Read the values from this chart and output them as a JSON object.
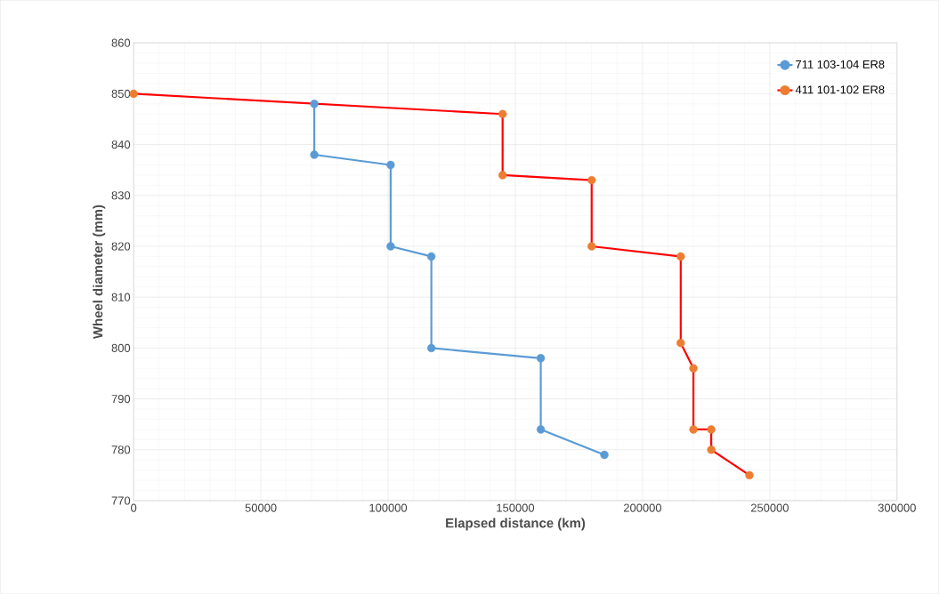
{
  "chart_data": {
    "type": "line",
    "xlabel": "Elapsed distance (km)",
    "ylabel": "Wheel diameter (mm)",
    "xlim": [
      0,
      300000
    ],
    "xticks": [
      0,
      50000,
      100000,
      150000,
      200000,
      250000,
      300000
    ],
    "ylim": [
      770,
      860
    ],
    "yticks": [
      770,
      780,
      790,
      800,
      810,
      820,
      830,
      840,
      850,
      860
    ],
    "grid": true,
    "legend": "top right",
    "marker": "circle",
    "line_style": "solid",
    "series": [
      {
        "name": "711 103-104 ER8",
        "color": "#5b9bd5",
        "x": [
          71000,
          71000,
          101000,
          101000,
          117000,
          117000,
          160000,
          160000,
          185000
        ],
        "values": [
          848,
          838,
          836,
          820,
          818,
          800,
          798,
          784,
          779
        ]
      },
      {
        "name": "411 101-102 ER8",
        "color": "#ff0000",
        "colors": [
          "#ed7d31",
          "#ed7d31",
          "#ed7d31",
          "#ed7d31",
          "#ed7d31",
          "#ed7d31",
          "#ed7d31",
          "#ed7d31",
          "#ed7d31",
          "#ed7d31",
          "#ed7d31",
          "#ed7d31"
        ],
        "x": [
          0,
          145000,
          145000,
          180000,
          180000,
          215000,
          215000,
          220000,
          220000,
          227000,
          227000,
          242000
        ],
        "values": [
          850,
          846,
          834,
          833,
          820,
          818,
          801,
          796,
          784,
          784,
          780,
          775
        ]
      }
    ]
  }
}
